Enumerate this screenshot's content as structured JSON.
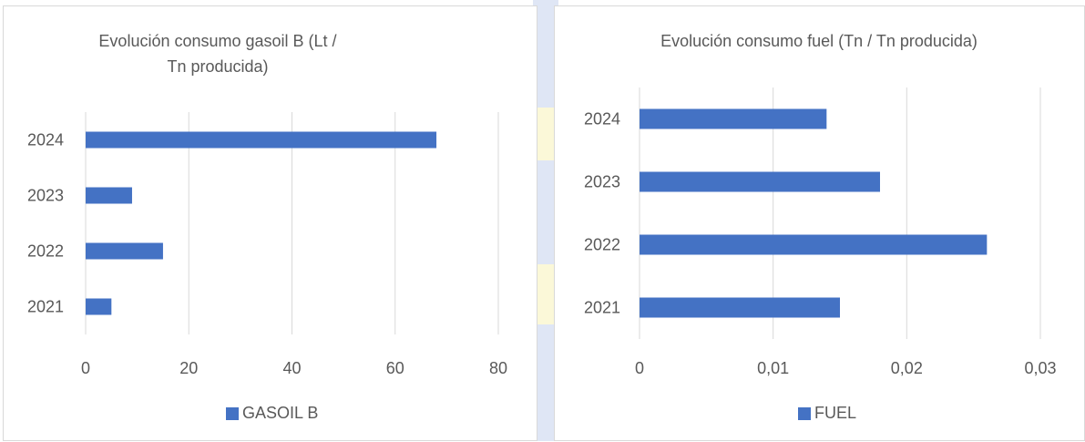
{
  "colors": {
    "bar": "#4472c4",
    "grid": "#d9d9d9",
    "text": "#595959"
  },
  "chart_data": [
    {
      "type": "bar",
      "orientation": "horizontal",
      "title": "Evolución consumo gasoil B (Lt / Tn producida)",
      "categories": [
        "2021",
        "2022",
        "2023",
        "2024"
      ],
      "series": [
        {
          "name": "GASOIL B",
          "values": [
            5,
            15,
            9,
            68
          ]
        }
      ],
      "xlim": [
        0,
        80
      ],
      "xticks": [
        "0",
        "20",
        "40",
        "60",
        "80"
      ],
      "grid": true,
      "legend": "bottom"
    },
    {
      "type": "bar",
      "orientation": "horizontal",
      "title": "Evolución consumo fuel (Tn / Tn producida)",
      "categories": [
        "2021",
        "2022",
        "2023",
        "2024"
      ],
      "series": [
        {
          "name": "FUEL",
          "values": [
            0.015,
            0.026,
            0.018,
            0.014
          ]
        }
      ],
      "xlim": [
        0,
        0.03
      ],
      "xticks": [
        "0",
        "0,01",
        "0,02",
        "0,03"
      ],
      "grid": true,
      "legend": "bottom"
    }
  ]
}
